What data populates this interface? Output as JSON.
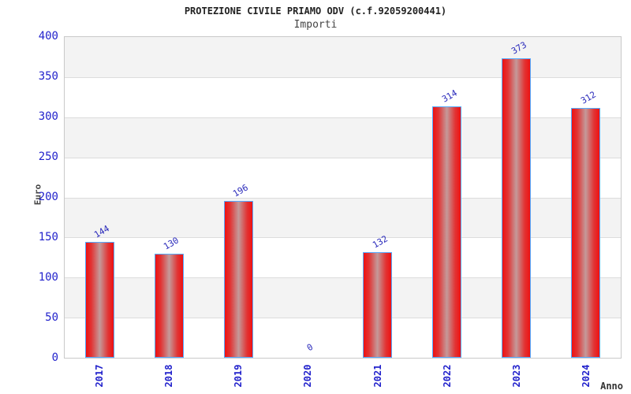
{
  "chart_data": {
    "type": "bar",
    "title": "PROTEZIONE CIVILE PRIAMO ODV (c.f.92059200441)",
    "subtitle": "Importi",
    "xlabel": "Anno",
    "ylabel": "Euro",
    "categories": [
      "2017",
      "2018",
      "2019",
      "2020",
      "2021",
      "2022",
      "2023",
      "2024"
    ],
    "values": [
      144,
      130,
      196,
      0,
      132,
      314,
      373,
      312
    ],
    "ylim": [
      0,
      400
    ],
    "ytick_step": 50,
    "grid": "horizontal-bands-alternating",
    "legend_position": "none",
    "colors": {
      "bar_edge_red": "#ee1111",
      "bar_mid_red": "#e13535",
      "bar_center_light": "#c49a9a",
      "bar_border_blue": "#55aaff",
      "tick_text_blue": "#2222cc",
      "value_label_blue": "#2a2abb",
      "band_gray": "#f3f3f3",
      "gridline_gray": "#dcdcdc",
      "title_dark": "#222222",
      "axis_label_dark": "#444444"
    }
  }
}
